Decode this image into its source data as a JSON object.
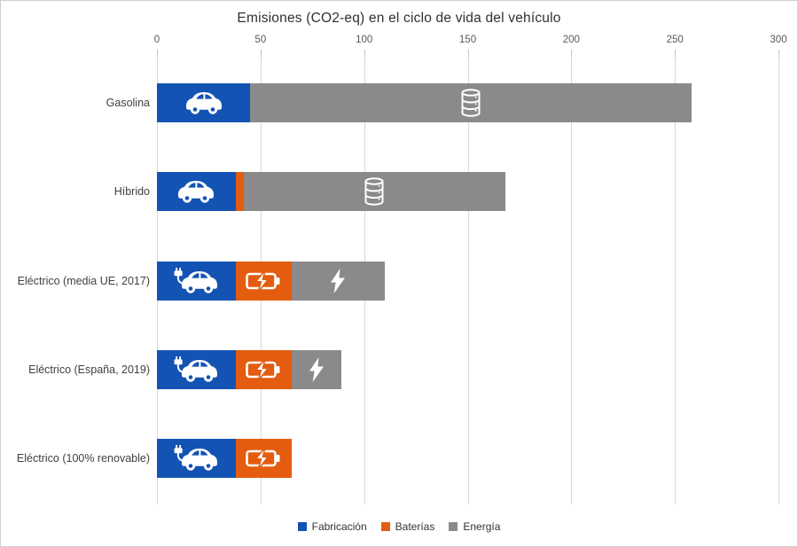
{
  "title": "Emisiones (CO2-eq) en el ciclo de vida del vehículo",
  "legend": {
    "items": [
      {
        "label": "Fabricación",
        "color": "#1353b4"
      },
      {
        "label": "Baterías",
        "color": "#e35c0f"
      },
      {
        "label": "Energía",
        "color": "#8a8a8a"
      }
    ]
  },
  "chart_data": {
    "type": "bar",
    "orientation": "horizontal",
    "stacked": true,
    "title": "Emisiones (CO2-eq) en el ciclo de vida del vehículo",
    "xlabel": "",
    "ylabel": "",
    "xlim": [
      0,
      300
    ],
    "x_ticks": [
      0,
      50,
      100,
      150,
      200,
      250,
      300
    ],
    "grid": "vertical",
    "legend_position": "bottom",
    "categories": [
      "Gasolina",
      "Híbrido",
      "Eléctrico (media UE, 2017)",
      "Eléctrico (España, 2019)",
      "Eléctrico (100% renovable)"
    ],
    "series": [
      {
        "name": "Fabricación",
        "color": "#1353b4",
        "values": [
          45,
          38,
          38,
          38,
          38
        ]
      },
      {
        "name": "Baterías",
        "color": "#e35c0f",
        "values": [
          0,
          4,
          27,
          27,
          27
        ]
      },
      {
        "name": "Energía",
        "color": "#8a8a8a",
        "values": [
          213,
          126,
          45,
          24,
          0
        ]
      }
    ],
    "totals": [
      258,
      168,
      110,
      89,
      65
    ],
    "icons": [
      {
        "Fabricación": "car-icon",
        "Energía": "oil-barrels-icon"
      },
      {
        "Fabricación": "car-icon",
        "Energía": "oil-barrels-icon"
      },
      {
        "Fabricación": "car-plug-icon",
        "Baterías": "battery-charge-icon",
        "Energía": "bolt-icon"
      },
      {
        "Fabricación": "car-plug-icon",
        "Baterías": "battery-charge-icon",
        "Energía": "bolt-icon"
      },
      {
        "Fabricación": "car-plug-icon",
        "Baterías": "battery-charge-icon"
      }
    ]
  }
}
